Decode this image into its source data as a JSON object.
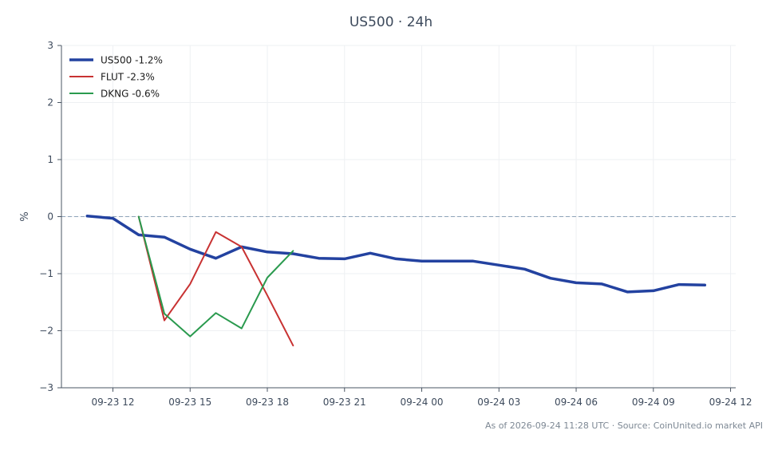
{
  "footer": "As of 2026-09-24 11:28 UTC · Source: CoinUnited.io market API",
  "chart_data": {
    "type": "line",
    "title": "US500 · 24h",
    "xlabel": "",
    "ylabel": "%",
    "x_ticks": [
      "09-23 12",
      "09-23 15",
      "09-23 18",
      "09-23 21",
      "09-24 00",
      "09-24 03",
      "09-24 06",
      "09-24 09",
      "09-24 12"
    ],
    "xlim": [
      "09-23 10:00",
      "09-24 12:12"
    ],
    "ylim": [
      -3,
      3
    ],
    "y_ticks": [
      -3,
      -2,
      -1,
      0,
      1,
      2,
      3
    ],
    "grid": true,
    "reference_line": 0,
    "legend_position": "top-left",
    "series": [
      {
        "name": "US500 -1.2%",
        "color": "#2342a0",
        "width": "thick",
        "x": [
          "09-23 11:00",
          "09-23 12:00",
          "09-23 13:00",
          "09-23 14:00",
          "09-23 15:00",
          "09-23 16:00",
          "09-23 17:00",
          "09-23 18:00",
          "09-23 19:00",
          "09-23 20:00",
          "09-23 21:00",
          "09-23 22:00",
          "09-23 23:00",
          "09-24 00:00",
          "09-24 01:00",
          "09-24 02:00",
          "09-24 03:00",
          "09-24 04:00",
          "09-24 05:00",
          "09-24 06:00",
          "09-24 07:00",
          "09-24 08:00",
          "09-24 09:00",
          "09-24 10:00",
          "09-24 11:00"
        ],
        "values": [
          0.01,
          -0.03,
          -0.32,
          -0.36,
          -0.57,
          -0.73,
          -0.53,
          -0.62,
          -0.65,
          -0.73,
          -0.74,
          -0.64,
          -0.74,
          -0.78,
          -0.78,
          -0.78,
          -0.85,
          -0.92,
          -1.08,
          -1.16,
          -1.18,
          -1.32,
          -1.3,
          -1.19,
          -1.2
        ]
      },
      {
        "name": "FLUT -2.3%",
        "color": "#c83232",
        "width": "normal",
        "x": [
          "09-23 13:00",
          "09-23 14:00",
          "09-23 15:00",
          "09-23 16:00",
          "09-23 17:00",
          "09-23 18:00",
          "09-23 19:00"
        ],
        "values": [
          0.0,
          -1.82,
          -1.18,
          -0.27,
          -0.53,
          -1.38,
          -2.26
        ]
      },
      {
        "name": "DKNG -0.6%",
        "color": "#2a9a4e",
        "width": "normal",
        "x": [
          "09-23 13:00",
          "09-23 14:00",
          "09-23 15:00",
          "09-23 16:00",
          "09-23 17:00",
          "09-23 18:00",
          "09-23 19:00"
        ],
        "values": [
          0.0,
          -1.7,
          -2.1,
          -1.69,
          -1.96,
          -1.07,
          -0.6
        ]
      }
    ]
  }
}
